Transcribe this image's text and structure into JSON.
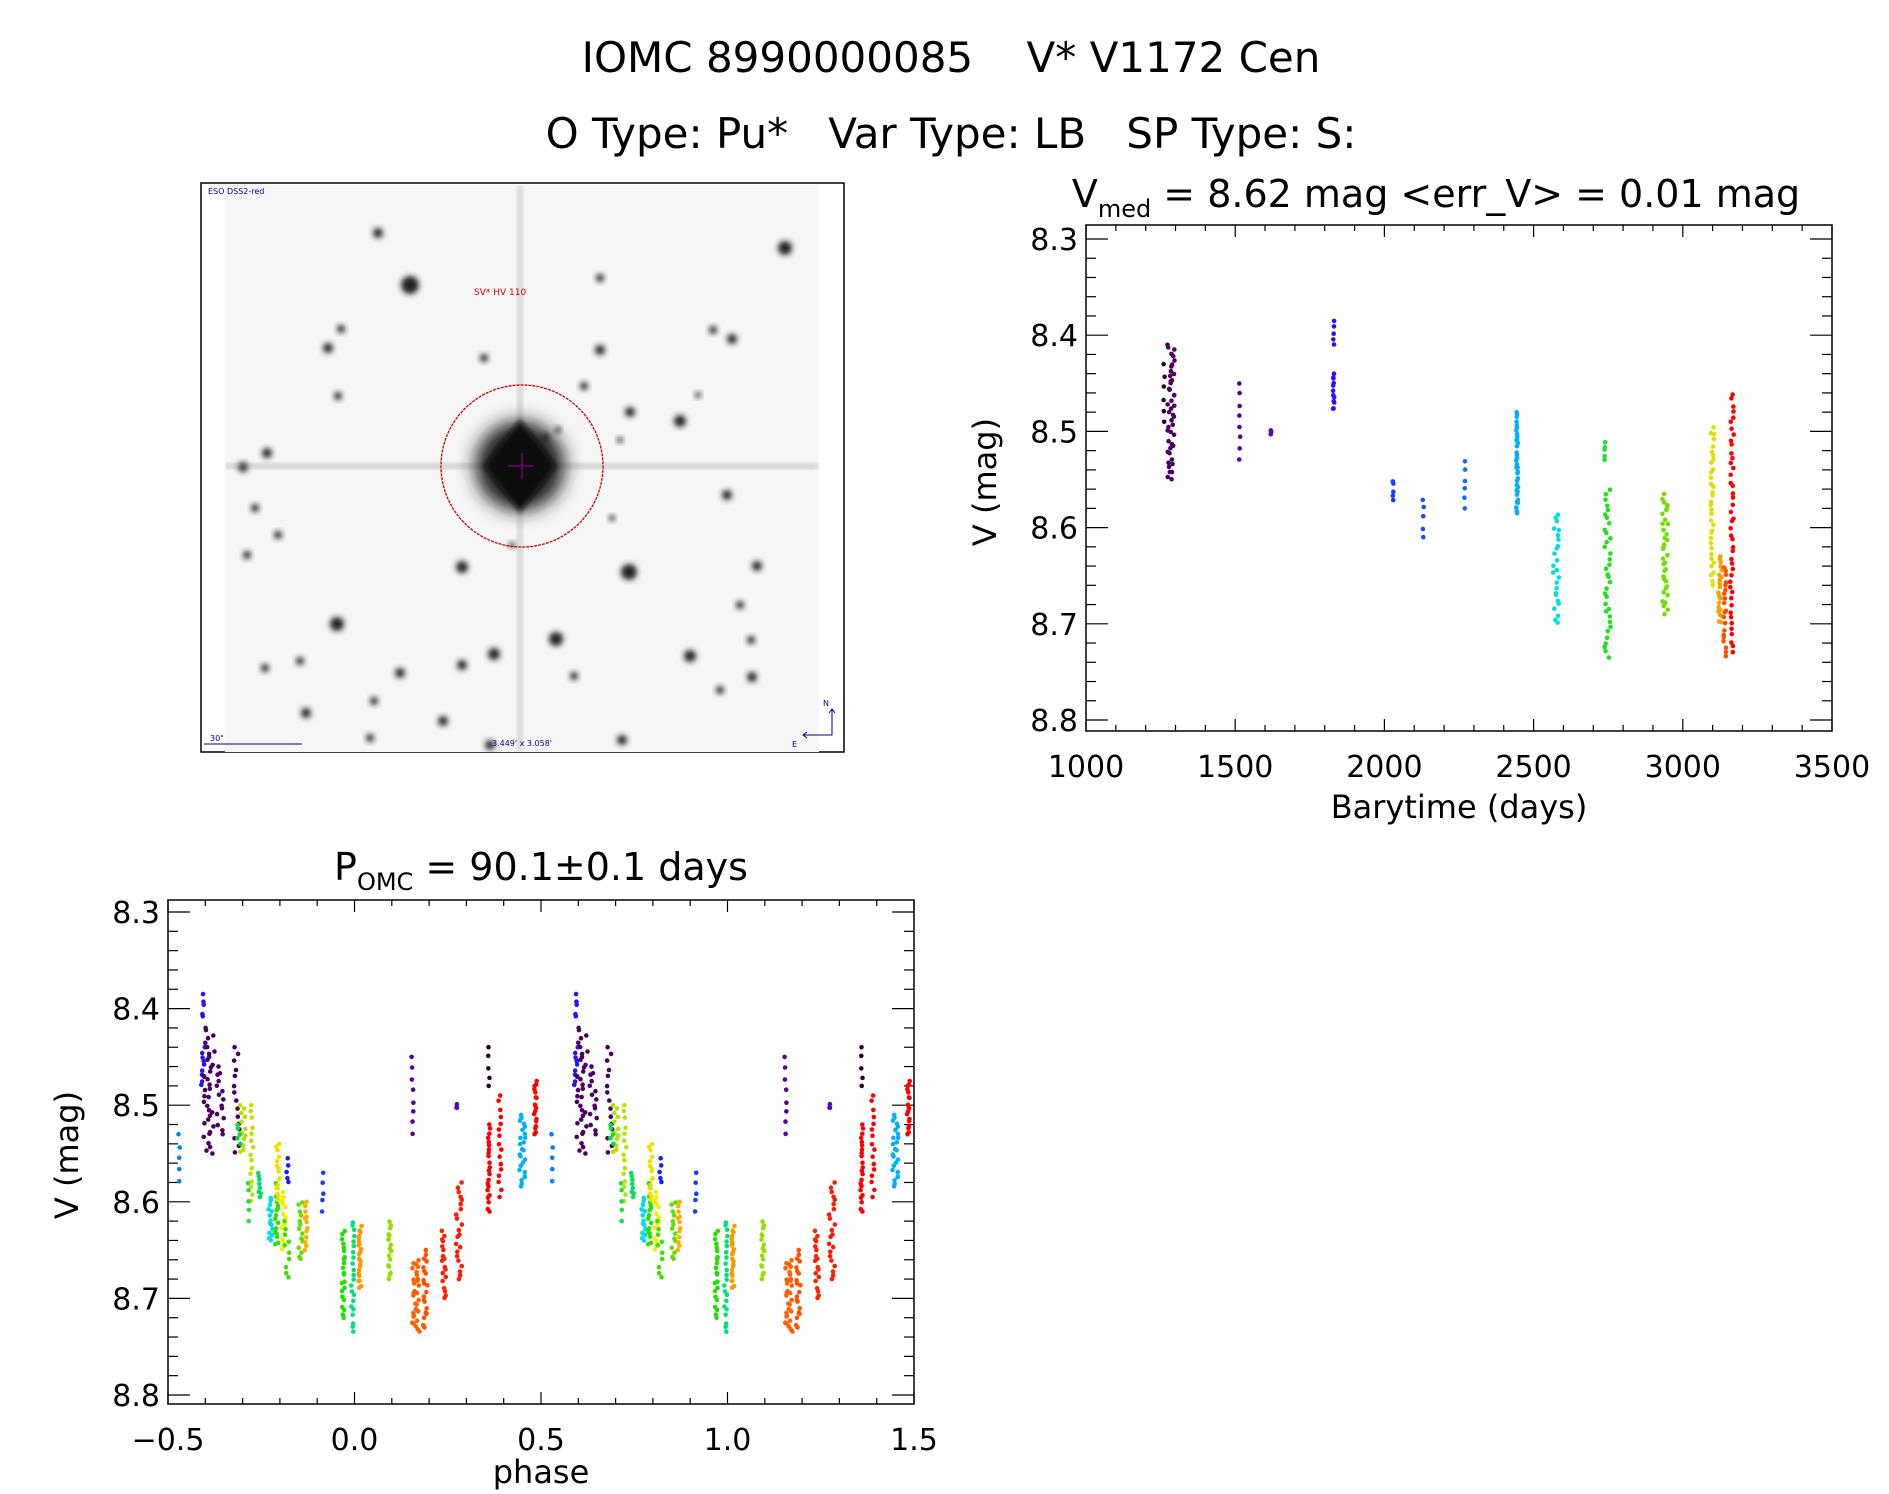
{
  "header": {
    "title": "IOMC 8990000085    V* V1172 Cen",
    "subtitle": "O Type: Pu*   Var Type: LB   SP Type: S:"
  },
  "sky_image": {
    "survey_label": "ESO DSS2-red",
    "target_label": "SV* HV 110",
    "scale_label": "30\"",
    "fov_label": "3.449' x 3.058'",
    "north_label": "N",
    "east_label": "E",
    "circle_color": "#cc0000",
    "label_color": "#00008b"
  },
  "chart_data": [
    {
      "type": "scatter",
      "title_main": "V",
      "title_sub": "med",
      "title_rest": " = 8.62 mag <err_V> = 0.01 mag",
      "xlabel": "Barytime (days)",
      "ylabel": "V (mag)",
      "xlim": [
        1000,
        3500
      ],
      "ylim": [
        8.3,
        8.8
      ],
      "y_inverted": true,
      "xticks": [
        "1000",
        "1500",
        "2000",
        "2500",
        "3000",
        "3500"
      ],
      "yticks": [
        "8.3",
        "8.4",
        "8.5",
        "8.6",
        "8.7",
        "8.8"
      ],
      "clusters": [
        {
          "x": 1285,
          "dx": 12,
          "ymin": 8.41,
          "ymax": 8.55,
          "n": 45,
          "color": "#4b0062"
        },
        {
          "x": 1262,
          "dx": 3,
          "ymin": 8.43,
          "ymax": 8.49,
          "n": 6,
          "color": "#2a0038"
        },
        {
          "x": 1515,
          "dx": 2,
          "ymin": 8.45,
          "ymax": 8.53,
          "n": 8,
          "color": "#5a0096"
        },
        {
          "x": 1620,
          "dx": 2,
          "ymin": 8.499,
          "ymax": 8.503,
          "n": 3,
          "color": "#5a00c8"
        },
        {
          "x": 1830,
          "dx": 2,
          "ymin": 8.385,
          "ymax": 8.41,
          "n": 5,
          "color": "#2a10ff"
        },
        {
          "x": 1830,
          "dx": 2,
          "ymin": 8.44,
          "ymax": 8.478,
          "n": 12,
          "color": "#2a10ff"
        },
        {
          "x": 2030,
          "dx": 2,
          "ymin": 8.55,
          "ymax": 8.572,
          "n": 5,
          "color": "#1a3cff"
        },
        {
          "x": 2130,
          "dx": 2,
          "ymin": 8.57,
          "ymax": 8.61,
          "n": 5,
          "color": "#1a4cff"
        },
        {
          "x": 2270,
          "dx": 2,
          "ymin": 8.53,
          "ymax": 8.58,
          "n": 6,
          "color": "#106cff"
        },
        {
          "x": 2445,
          "dx": 3,
          "ymin": 8.48,
          "ymax": 8.585,
          "n": 35,
          "color": "#00b0ff"
        },
        {
          "x": 2575,
          "dx": 10,
          "ymin": 8.585,
          "ymax": 8.7,
          "n": 25,
          "color": "#00e0e0"
        },
        {
          "x": 2740,
          "dx": 3,
          "ymin": 8.51,
          "ymax": 8.53,
          "n": 5,
          "color": "#20e040"
        },
        {
          "x": 2748,
          "dx": 10,
          "ymin": 8.56,
          "ymax": 8.735,
          "n": 35,
          "color": "#20e020"
        },
        {
          "x": 2940,
          "dx": 10,
          "ymin": 8.565,
          "ymax": 8.69,
          "n": 35,
          "color": "#70e000"
        },
        {
          "x": 3100,
          "dx": 6,
          "ymin": 8.495,
          "ymax": 8.66,
          "n": 35,
          "color": "#e0e000"
        },
        {
          "x": 3125,
          "dx": 6,
          "ymin": 8.63,
          "ymax": 8.7,
          "n": 20,
          "color": "#ffa000"
        },
        {
          "x": 3140,
          "dx": 5,
          "ymin": 8.64,
          "ymax": 8.735,
          "n": 20,
          "color": "#ff5000"
        },
        {
          "x": 3165,
          "dx": 6,
          "ymin": 8.46,
          "ymax": 8.73,
          "n": 45,
          "color": "#ff0000"
        }
      ]
    },
    {
      "type": "scatter",
      "title_main": "P",
      "title_sub": "OMC",
      "title_rest": " = 90.1±0.1 days",
      "xlabel": "phase",
      "ylabel": "V (mag)",
      "xlim": [
        -0.5,
        1.5
      ],
      "ylim": [
        8.3,
        8.8
      ],
      "y_inverted": true,
      "repeat_period": 1.0,
      "xticks": [
        "−0.5",
        "0.0",
        "0.5",
        "1.0",
        "1.5"
      ],
      "yticks": [
        "8.3",
        "8.4",
        "8.5",
        "8.6",
        "8.7",
        "8.8"
      ],
      "clusters": [
        {
          "x": -0.47,
          "dx": 0.002,
          "ymin": 8.53,
          "ymax": 8.58,
          "n": 5,
          "color": "#0080ff"
        },
        {
          "x": -0.405,
          "dx": 0.004,
          "ymin": 8.385,
          "ymax": 8.41,
          "n": 5,
          "color": "#2a10ff"
        },
        {
          "x": -0.405,
          "dx": 0.006,
          "ymin": 8.44,
          "ymax": 8.48,
          "n": 10,
          "color": "#2a10ff"
        },
        {
          "x": -0.39,
          "dx": 0.015,
          "ymin": 8.42,
          "ymax": 8.55,
          "n": 35,
          "color": "#4b0062"
        },
        {
          "x": -0.36,
          "dx": 0.01,
          "ymin": 8.46,
          "ymax": 8.53,
          "n": 15,
          "color": "#4b0062"
        },
        {
          "x": -0.315,
          "dx": 0.008,
          "ymin": 8.44,
          "ymax": 8.55,
          "n": 15,
          "color": "#4b0062"
        },
        {
          "x": -0.3,
          "dx": 0.008,
          "ymin": 8.5,
          "ymax": 8.55,
          "n": 12,
          "color": "#b8e000"
        },
        {
          "x": -0.31,
          "dx": 0.004,
          "ymin": 8.52,
          "ymax": 8.54,
          "n": 5,
          "color": "#00e040"
        },
        {
          "x": -0.275,
          "dx": 0.004,
          "ymin": 8.5,
          "ymax": 8.6,
          "n": 15,
          "color": "#c0e000"
        },
        {
          "x": -0.285,
          "dx": 0.003,
          "ymin": 8.58,
          "ymax": 8.62,
          "n": 5,
          "color": "#20e040"
        },
        {
          "x": -0.255,
          "dx": 0.004,
          "ymin": 8.57,
          "ymax": 8.595,
          "n": 8,
          "color": "#00e060"
        },
        {
          "x": -0.225,
          "dx": 0.006,
          "ymin": 8.595,
          "ymax": 8.64,
          "n": 15,
          "color": "#00e0e0"
        },
        {
          "x": -0.21,
          "dx": 0.006,
          "ymin": 8.58,
          "ymax": 8.645,
          "n": 18,
          "color": "#30e000"
        },
        {
          "x": -0.205,
          "dx": 0.006,
          "ymin": 8.54,
          "ymax": 8.6,
          "n": 15,
          "color": "#f0e000"
        },
        {
          "x": -0.19,
          "dx": 0.006,
          "ymin": 8.59,
          "ymax": 8.65,
          "n": 15,
          "color": "#f0f000"
        },
        {
          "x": -0.18,
          "dx": 0.003,
          "ymin": 8.555,
          "ymax": 8.58,
          "n": 5,
          "color": "#1020ff"
        },
        {
          "x": -0.18,
          "dx": 0.008,
          "ymin": 8.62,
          "ymax": 8.68,
          "n": 10,
          "color": "#40e000"
        },
        {
          "x": -0.145,
          "dx": 0.006,
          "ymin": 8.6,
          "ymax": 8.66,
          "n": 14,
          "color": "#60e000"
        },
        {
          "x": -0.13,
          "dx": 0.004,
          "ymin": 8.6,
          "ymax": 8.65,
          "n": 12,
          "color": "#ffb000"
        },
        {
          "x": -0.085,
          "dx": 0.003,
          "ymin": 8.57,
          "ymax": 8.61,
          "n": 5,
          "color": "#1040ff"
        },
        {
          "x": -0.03,
          "dx": 0.004,
          "ymin": 8.63,
          "ymax": 8.72,
          "n": 22,
          "color": "#20e000"
        },
        {
          "x": -0.005,
          "dx": 0.005,
          "ymin": 8.62,
          "ymax": 8.735,
          "n": 22,
          "color": "#00e080"
        },
        {
          "x": 0.015,
          "dx": 0.004,
          "ymin": 8.625,
          "ymax": 8.69,
          "n": 22,
          "color": "#ff9800"
        },
        {
          "x": 0.095,
          "dx": 0.004,
          "ymin": 8.62,
          "ymax": 8.68,
          "n": 16,
          "color": "#90e000"
        },
        {
          "x": 0.155,
          "dx": 0.003,
          "ymin": 8.45,
          "ymax": 8.53,
          "n": 8,
          "color": "#5a0096"
        },
        {
          "x": 0.165,
          "dx": 0.01,
          "ymin": 8.66,
          "ymax": 8.735,
          "n": 30,
          "color": "#ff6000"
        },
        {
          "x": 0.19,
          "dx": 0.006,
          "ymin": 8.65,
          "ymax": 8.73,
          "n": 20,
          "color": "#ff5000"
        },
        {
          "x": 0.24,
          "dx": 0.006,
          "ymin": 8.63,
          "ymax": 8.7,
          "n": 18,
          "color": "#ff2000"
        },
        {
          "x": 0.275,
          "dx": 0.002,
          "ymin": 8.499,
          "ymax": 8.503,
          "n": 3,
          "color": "#5a00c8"
        },
        {
          "x": 0.28,
          "dx": 0.008,
          "ymin": 8.58,
          "ymax": 8.68,
          "n": 22,
          "color": "#ff1a00"
        },
        {
          "x": 0.36,
          "dx": 0.002,
          "ymin": 8.44,
          "ymax": 8.48,
          "n": 5,
          "color": "#2a0030"
        },
        {
          "x": 0.36,
          "dx": 0.004,
          "ymin": 8.52,
          "ymax": 8.61,
          "n": 22,
          "color": "#ff0000"
        },
        {
          "x": 0.39,
          "dx": 0.004,
          "ymin": 8.49,
          "ymax": 8.595,
          "n": 16,
          "color": "#ff0000"
        },
        {
          "x": 0.45,
          "dx": 0.008,
          "ymin": 8.51,
          "ymax": 8.585,
          "n": 25,
          "color": "#00b0ff"
        },
        {
          "x": 0.485,
          "dx": 0.004,
          "ymin": 8.475,
          "ymax": 8.53,
          "n": 18,
          "color": "#ff0000"
        }
      ]
    }
  ]
}
